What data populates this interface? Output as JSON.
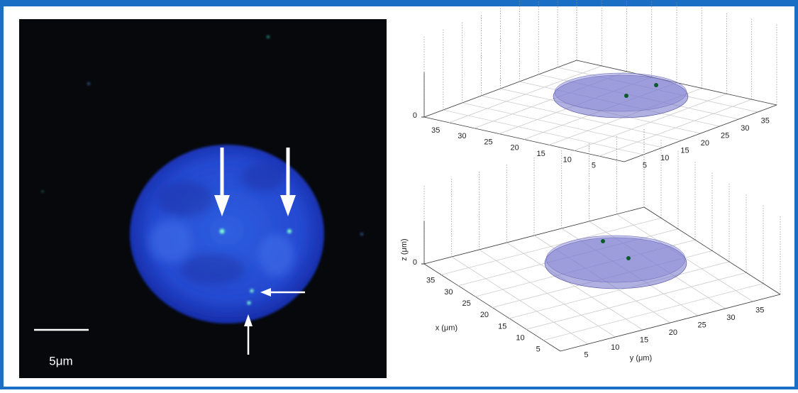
{
  "image": {
    "scale_bar_label": "5μm"
  },
  "plots": [
    {
      "z_ticks": [
        "0"
      ],
      "x_ticks": [
        "35",
        "30",
        "25",
        "20",
        "15",
        "10",
        "5"
      ],
      "y_ticks": [
        "5",
        "10",
        "15",
        "20",
        "25",
        "30",
        "35"
      ]
    },
    {
      "z_label": "z (μm)",
      "x_label": "x (μm)",
      "y_label": "y (μm)",
      "z_ticks": [
        "0"
      ],
      "x_ticks": [
        "35",
        "30",
        "25",
        "20",
        "15",
        "10",
        "5"
      ],
      "y_ticks": [
        "5",
        "10",
        "15",
        "20",
        "25",
        "30",
        "35"
      ]
    }
  ]
}
